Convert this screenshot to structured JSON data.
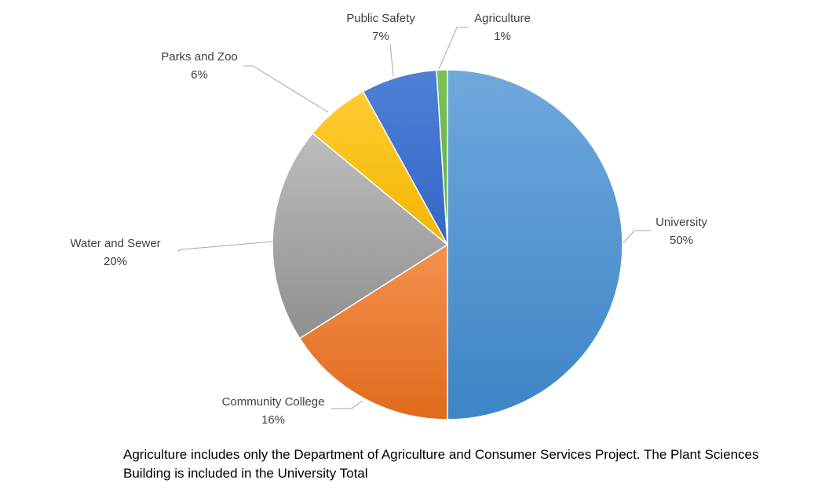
{
  "chart_data": {
    "type": "pie",
    "title": "",
    "slices": [
      {
        "label": "University",
        "value": 50,
        "value_label": "50%",
        "color_top": "#6fa8dc",
        "color_bottom": "#3d85c6"
      },
      {
        "label": "Community College",
        "value": 16,
        "value_label": "16%",
        "color_top": "#f4914f",
        "color_bottom": "#e06a1b"
      },
      {
        "label": "Water and Sewer",
        "value": 20,
        "value_label": "20%",
        "color_top": "#bdbdbd",
        "color_bottom": "#8f8f8f"
      },
      {
        "label": "Parks and Zoo",
        "value": 6,
        "value_label": "6%",
        "color_top": "#ffcc33",
        "color_bottom": "#f2b600"
      },
      {
        "label": "Public Safety",
        "value": 7,
        "value_label": "7%",
        "color_top": "#4f7fd6",
        "color_bottom": "#3566c4"
      },
      {
        "label": "Agriculture",
        "value": 1,
        "value_label": "1%",
        "color_top": "#7bc35a",
        "color_bottom": "#5fae3e"
      }
    ],
    "legend": "none",
    "label_style": "outside-with-leader-lines"
  },
  "footnote": "Agriculture includes only the Department of Agriculture and Consumer Services Project.  The Plant Sciences Building is included in the University Total"
}
